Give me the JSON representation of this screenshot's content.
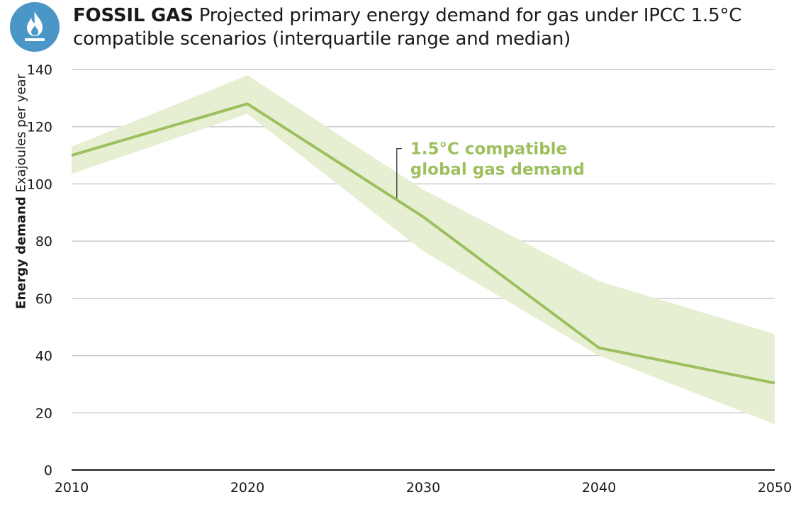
{
  "header": {
    "title_bold": "FOSSIL GAS",
    "title_rest": " Projected primary energy demand for gas under IPCC 1.5°C compatible scenarios (interquartile range and median)",
    "icon": "flame-icon"
  },
  "colors": {
    "band": "#e7efd3",
    "median": "#9dc05f",
    "icon_bg": "#4a96c6",
    "grid": "#cccccc"
  },
  "chart_data": {
    "type": "area",
    "x": [
      2010,
      2020,
      2030,
      2040,
      2050
    ],
    "series": [
      {
        "name": "1.5°C compatible global gas demand",
        "values": [
          110,
          128,
          88.5,
          42.7,
          30.4
        ]
      }
    ],
    "band": {
      "low": [
        103.5,
        124.5,
        76.5,
        40,
        16
      ],
      "high": [
        113,
        138,
        98,
        66,
        47.5
      ]
    },
    "ylabel_bold": "Energy demand",
    "ylabel_rest": " Exajoules per year",
    "xlim": [
      2010,
      2050
    ],
    "ylim": [
      0,
      140
    ],
    "yticks": [
      0,
      20,
      40,
      60,
      80,
      100,
      120,
      140
    ],
    "xticks": [
      2010,
      2020,
      2030,
      2040,
      2050
    ],
    "grid": true,
    "annotation": {
      "lines": [
        "1.5°C compatible",
        "global gas demand"
      ],
      "x": 2028.5,
      "y": 95
    }
  }
}
